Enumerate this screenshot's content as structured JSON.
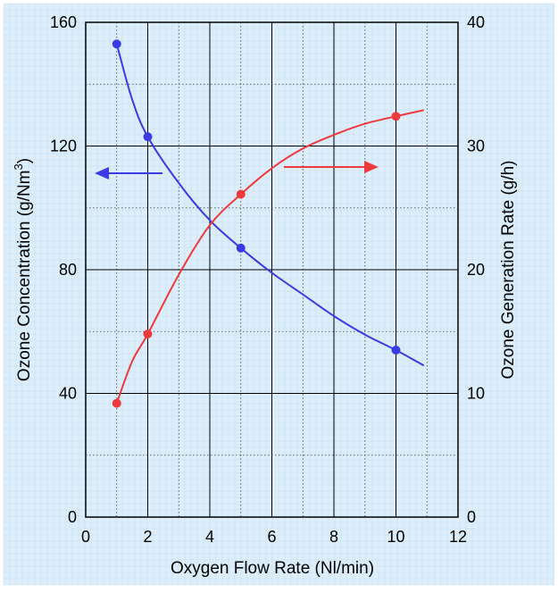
{
  "chart_data": {
    "type": "line",
    "title": "",
    "xlabel": "Oxygen Flow Rate (Nl/min)",
    "ylabel_left": {
      "text": "Ozone Concentration (g/Nm",
      "sup": "3",
      "tail": ")"
    },
    "ylabel_right": "Ozone Generation Rate (g/h)",
    "xlim": [
      0,
      12
    ],
    "ylim_left": [
      0,
      160
    ],
    "ylim_right": [
      0,
      40
    ],
    "x_ticks": [
      "0",
      "2",
      "4",
      "6",
      "8",
      "10",
      "12"
    ],
    "y_left_ticks": [
      "0",
      "40",
      "80",
      "120",
      "160"
    ],
    "y_right_ticks": [
      "0",
      "10",
      "20",
      "30",
      "40"
    ],
    "grid": true,
    "colors": {
      "background": "#ddeefa",
      "minor_grid": "#c4dff5",
      "concentration": "#3a3ae6",
      "generation": "#ee3a3a"
    },
    "series": [
      {
        "axis": "left",
        "points_x": [
          1,
          2,
          5,
          10
        ],
        "points_y": [
          153,
          123,
          87,
          54
        ],
        "curve_x": [
          1,
          1.5,
          2,
          3,
          4,
          5,
          6,
          7,
          8,
          9,
          10,
          10.9
        ],
        "curve_y": [
          153,
          135,
          123,
          108,
          96,
          87,
          79,
          72,
          65,
          59,
          54,
          49
        ]
      },
      {
        "axis": "right",
        "points_x": [
          1,
          2,
          5,
          10
        ],
        "points_y": [
          9.2,
          14.8,
          26.1,
          32.4
        ],
        "curve_x": [
          1,
          1.5,
          2,
          3,
          4,
          5,
          6,
          7,
          8,
          9,
          10,
          10.9
        ],
        "curve_y": [
          9.2,
          12.6,
          14.8,
          19.6,
          23.6,
          26.1,
          28.2,
          29.8,
          30.9,
          31.8,
          32.4,
          32.9
        ]
      }
    ],
    "annotations": [
      {
        "type": "arrow",
        "points_to": "left axis",
        "series": "concentration"
      },
      {
        "type": "arrow",
        "points_to": "right axis",
        "series": "generation"
      }
    ]
  }
}
